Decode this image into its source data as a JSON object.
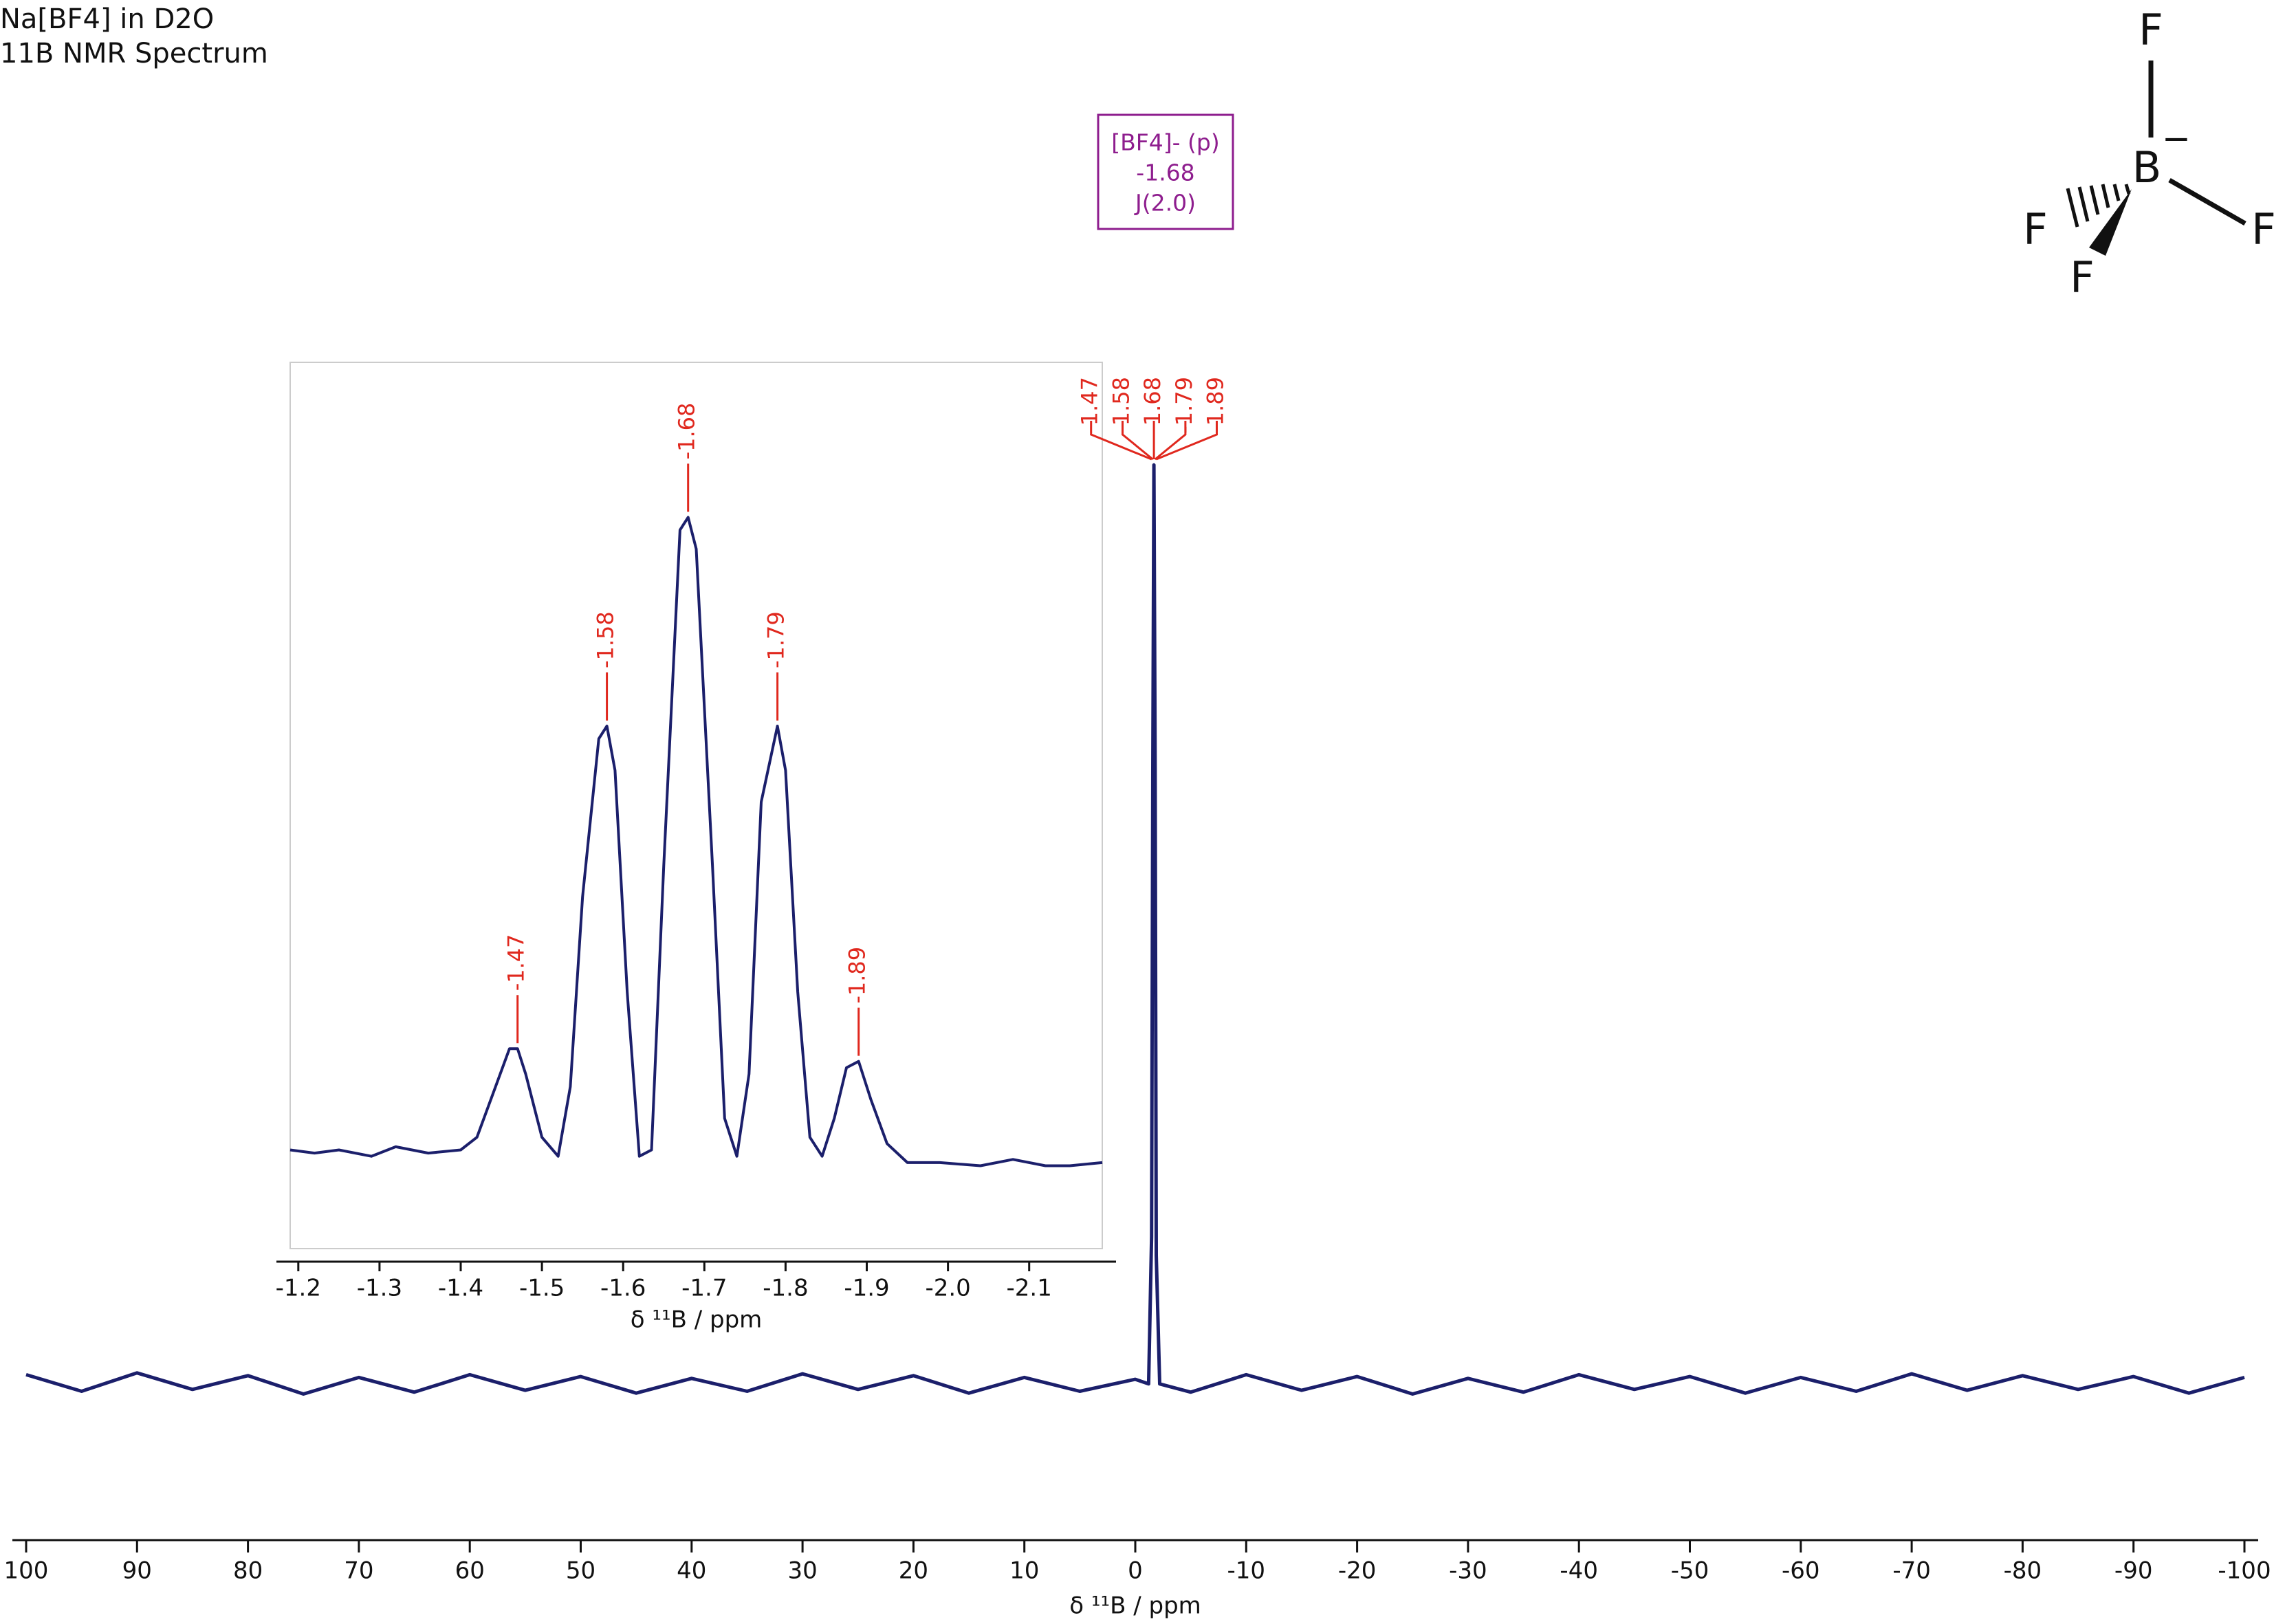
{
  "structure": {
    "atoms": [
      "F",
      "B",
      "F",
      "F",
      "F"
    ],
    "charge": "−"
  },
  "chart_data": [
    {
      "type": "line",
      "title": "Na[BF4] in D2O",
      "subtitle": "11B NMR Spectrum",
      "x_label": "δ ¹¹B / ppm",
      "color": "#1b1f6b",
      "peak_color": "#e0281e",
      "x": [
        100,
        95,
        90,
        85,
        80,
        75,
        70,
        65,
        60,
        55,
        50,
        45,
        40,
        35,
        30,
        25,
        20,
        15,
        10,
        5,
        0,
        -1.2,
        -1.47,
        -1.58,
        -1.68,
        -1.79,
        -1.89,
        -2.2,
        -5,
        -10,
        -15,
        -20,
        -25,
        -30,
        -35,
        -40,
        -45,
        -50,
        -55,
        -60,
        -65,
        -70,
        -75,
        -80,
        -85,
        -90,
        -95,
        -100
      ],
      "values": [
        0.01,
        -0.008,
        0.012,
        -0.006,
        0.009,
        -0.011,
        0.007,
        -0.009,
        0.01,
        -0.007,
        0.008,
        -0.01,
        0.006,
        -0.008,
        0.011,
        -0.006,
        0.009,
        -0.01,
        0.007,
        -0.008,
        0.005,
        0.0,
        0.16,
        0.67,
        1.0,
        0.67,
        0.14,
        0.0,
        -0.009,
        0.01,
        -0.007,
        0.008,
        -0.011,
        0.006,
        -0.009,
        0.01,
        -0.006,
        0.008,
        -0.01,
        0.007,
        -0.008,
        0.011,
        -0.007,
        0.009,
        -0.006,
        0.008,
        -0.01,
        0.007
      ],
      "xlim": [
        100,
        -100
      ],
      "ylim": [
        -0.17,
        1.5
      ],
      "xticks": [
        100,
        90,
        80,
        70,
        60,
        50,
        40,
        30,
        20,
        10,
        0,
        -10,
        -20,
        -30,
        -40,
        -50,
        -60,
        -70,
        -80,
        -90,
        -100
      ],
      "peaks": [
        -1.47,
        -1.58,
        -1.68,
        -1.79,
        -1.89
      ],
      "multiplet": {
        "name": "[BF4]- (p)",
        "shift": -1.68,
        "coupling": "J(2.0)",
        "color": "#8e1d8e"
      }
    },
    {
      "type": "line",
      "x_label": "δ ¹¹B / ppm",
      "color": "#1b1f6b",
      "peak_color": "#e0281e",
      "x": [
        -1.19,
        -1.22,
        -1.25,
        -1.29,
        -1.32,
        -1.36,
        -1.4,
        -1.42,
        -1.44,
        -1.46,
        -1.47,
        -1.48,
        -1.5,
        -1.52,
        -1.535,
        -1.55,
        -1.57,
        -1.58,
        -1.59,
        -1.605,
        -1.62,
        -1.635,
        -1.65,
        -1.67,
        -1.68,
        -1.69,
        -1.71,
        -1.725,
        -1.74,
        -1.755,
        -1.77,
        -1.79,
        -1.8,
        -1.815,
        -1.83,
        -1.845,
        -1.86,
        -1.875,
        -1.89,
        -1.905,
        -1.925,
        -1.95,
        -1.99,
        -2.04,
        -2.08,
        -2.12,
        -2.15,
        -2.19
      ],
      "values": [
        0.0,
        -0.005,
        0.0,
        -0.01,
        0.005,
        -0.005,
        0.0,
        0.02,
        0.09,
        0.16,
        0.16,
        0.12,
        0.02,
        -0.01,
        0.1,
        0.4,
        0.65,
        0.67,
        0.6,
        0.25,
        -0.01,
        0.0,
        0.45,
        0.98,
        1.0,
        0.95,
        0.45,
        0.05,
        -0.01,
        0.12,
        0.55,
        0.67,
        0.6,
        0.25,
        0.02,
        -0.01,
        0.05,
        0.13,
        0.14,
        0.08,
        0.01,
        -0.02,
        -0.02,
        -0.025,
        -0.015,
        -0.025,
        -0.025,
        -0.02
      ],
      "xlim": [
        -1.19,
        -2.19
      ],
      "ylim": [
        -0.156,
        1.245
      ],
      "xticks": [
        -1.2,
        -1.3,
        -1.4,
        -1.5,
        -1.6,
        -1.7,
        -1.8,
        -1.9,
        {
          "value": -2,
          "label": "-2.0"
        },
        -2.1
      ],
      "peaks": [
        -1.47,
        -1.58,
        -1.68,
        -1.79,
        -1.89
      ]
    }
  ]
}
